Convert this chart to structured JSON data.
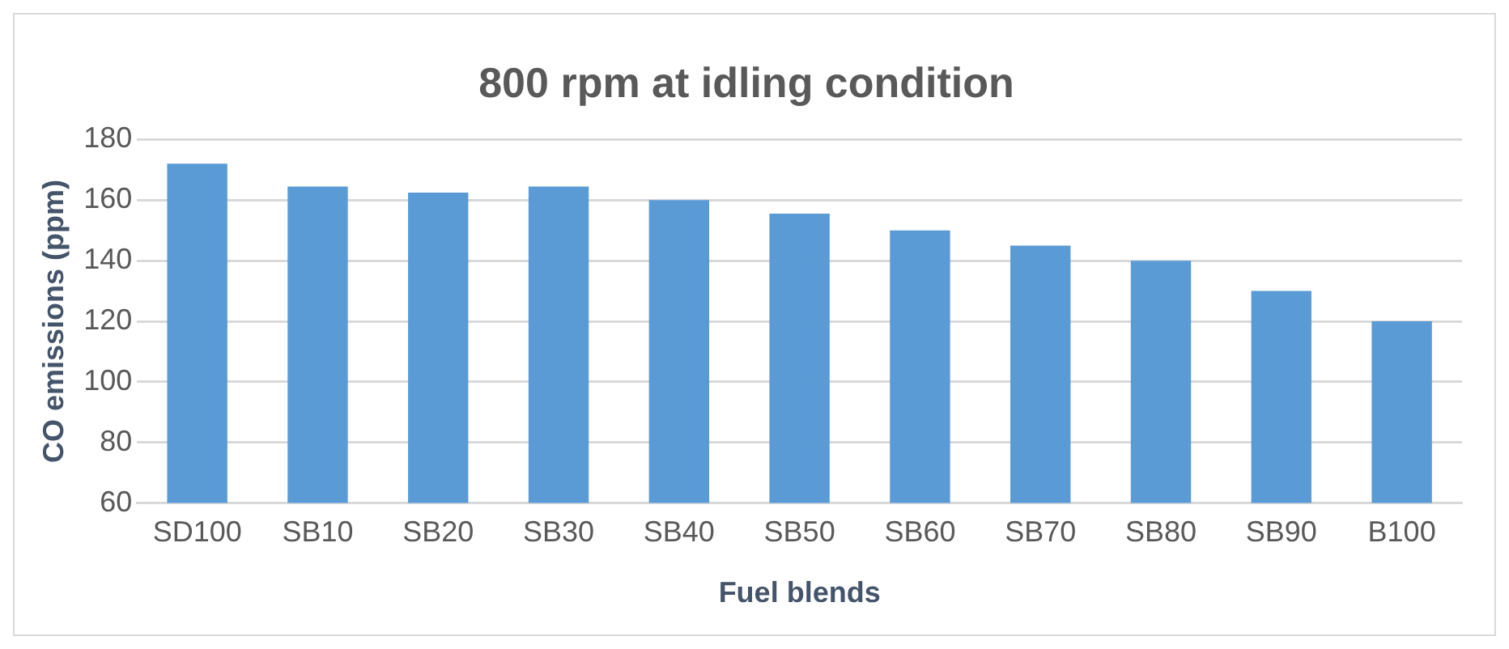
{
  "chart_data": {
    "type": "bar",
    "title": "800 rpm at idling condition",
    "xlabel": "Fuel blends",
    "ylabel": "CO emissions (ppm)",
    "categories": [
      "SD100",
      "SB10",
      "SB20",
      "SB30",
      "SB40",
      "SB50",
      "SB60",
      "SB70",
      "SB80",
      "SB90",
      "B100"
    ],
    "values": [
      172,
      164.5,
      162.5,
      164.5,
      160,
      155.5,
      150,
      145,
      140,
      130,
      120
    ],
    "color": "#5b9bd5",
    "ylim": [
      60,
      180
    ],
    "yticks": [
      60,
      80,
      100,
      120,
      140,
      160,
      180
    ],
    "grid": "y",
    "legend": false
  }
}
